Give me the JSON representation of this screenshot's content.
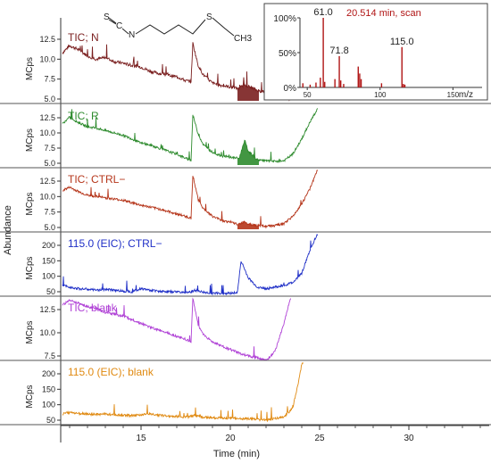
{
  "figure": {
    "y_axis_label": "Abundance",
    "x_axis_label": "Time (min)",
    "structure_labels": {
      "S": "S",
      "C": "C",
      "N": "N",
      "S2": "S",
      "CH3": "CH3"
    }
  },
  "chart_data": [
    {
      "type": "line",
      "title": "TIC; N",
      "color": "#7a1f1f",
      "ylabel": "MCps",
      "y_ticks": [
        "12.5",
        "10.0",
        "7.5",
        "5.0"
      ],
      "x_range": [
        10.5,
        34.5
      ],
      "peak_fill_window": [
        20.4,
        21.6
      ],
      "series": [
        {
          "x": [
            10.6,
            11,
            11.5,
            12,
            12.5,
            13,
            13.5,
            14,
            14.5,
            15,
            15.5,
            16,
            16.5,
            17,
            17.5,
            17.8,
            17.9,
            18.2,
            18.5,
            19,
            19.5,
            20,
            20.5,
            20.8,
            21,
            21.5,
            22,
            22.5,
            23,
            23.4
          ],
          "y": [
            10.8,
            11.7,
            11.2,
            10.4,
            10.0,
            10.2,
            9.7,
            9.5,
            9.2,
            9.0,
            8.5,
            8.2,
            8.0,
            7.8,
            7.3,
            7.2,
            12.0,
            9.2,
            8.0,
            7.0,
            6.7,
            6.5,
            6.3,
            6.9,
            6.6,
            6.1,
            5.8,
            5.5,
            5.2,
            5.0
          ]
        }
      ]
    },
    {
      "type": "line",
      "title": "TIC; R",
      "color": "#2e8b2e",
      "ylabel": "MCps",
      "y_ticks": [
        "12.5",
        "10.0",
        "7.5",
        "5.0"
      ],
      "x_range": [
        10.5,
        34.5
      ],
      "peak_fill_window": [
        20.4,
        21.6
      ],
      "series": [
        {
          "x": [
            10.6,
            11,
            11.5,
            12,
            12.5,
            13,
            13.5,
            14,
            14.5,
            15,
            15.5,
            16,
            16.5,
            17,
            17.5,
            17.8,
            17.9,
            18.2,
            18.5,
            19,
            19.5,
            20,
            20.5,
            20.8,
            21,
            21.5,
            22,
            22.5,
            23,
            23.5,
            24,
            24.5,
            24.9
          ],
          "y": [
            11.5,
            12.6,
            11.7,
            11.0,
            10.8,
            10.4,
            10.0,
            9.6,
            9.0,
            8.3,
            8.0,
            7.5,
            7.0,
            6.5,
            5.8,
            5.5,
            13.0,
            9.8,
            8.0,
            6.8,
            6.2,
            6.0,
            5.8,
            8.8,
            7.0,
            5.6,
            5.4,
            5.3,
            5.4,
            6.5,
            9.0,
            12.0,
            14.0
          ]
        }
      ]
    },
    {
      "type": "line",
      "title": "TIC; CTRL−",
      "color": "#b5351a",
      "ylabel": "MCps",
      "y_ticks": [
        "12.5",
        "10.0",
        "7.5",
        "5.0"
      ],
      "x_range": [
        10.5,
        34.5
      ],
      "peak_fill_window": [
        20.4,
        21.6
      ],
      "series": [
        {
          "x": [
            10.6,
            11,
            11.5,
            12,
            12.5,
            13,
            13.5,
            14,
            14.5,
            15,
            15.5,
            16,
            16.5,
            17,
            17.5,
            17.8,
            17.9,
            18.2,
            18.5,
            19,
            19.5,
            20,
            20.5,
            20.8,
            21,
            21.5,
            22,
            22.5,
            23,
            23.5,
            24,
            24.5,
            24.9
          ],
          "y": [
            11.0,
            11.5,
            10.8,
            10.2,
            10.0,
            9.8,
            9.6,
            9.4,
            9.0,
            8.6,
            8.3,
            8.0,
            7.6,
            7.2,
            6.8,
            6.5,
            13.5,
            9.5,
            8.0,
            6.8,
            6.2,
            5.8,
            5.5,
            6.0,
            5.6,
            5.3,
            5.2,
            5.3,
            5.6,
            6.8,
            8.8,
            11.5,
            14.5
          ]
        }
      ]
    },
    {
      "type": "line",
      "title": "115.0 (EIC); CTRL−",
      "color": "#1f2fc7",
      "ylabel": "MCps",
      "y_ticks": [
        "200",
        "150",
        "100",
        "50"
      ],
      "x_range": [
        10.5,
        34.5
      ],
      "series": [
        {
          "x": [
            10.6,
            11,
            11.5,
            12,
            12.5,
            13,
            13.5,
            14,
            14.5,
            15,
            15.5,
            16,
            16.5,
            17,
            17.5,
            17.8,
            18,
            18.5,
            19,
            19.5,
            20,
            20.4,
            20.6,
            21,
            21.5,
            22,
            22.5,
            23,
            23.5,
            24,
            24.5,
            24.9
          ],
          "y": [
            70,
            65,
            60,
            58,
            55,
            58,
            55,
            52,
            50,
            60,
            55,
            52,
            50,
            50,
            48,
            48,
            55,
            48,
            45,
            45,
            45,
            48,
            150,
            95,
            65,
            60,
            65,
            70,
            80,
            110,
            190,
            240
          ]
        }
      ]
    },
    {
      "type": "line",
      "title": "TIC; blank",
      "color": "#b042d6",
      "ylabel": "MCps",
      "y_ticks": [
        "12.5",
        "10.0",
        "7.5"
      ],
      "x_range": [
        10.5,
        34.5
      ],
      "series": [
        {
          "x": [
            10.6,
            11,
            11.5,
            12,
            12.5,
            13,
            13.5,
            14,
            14.5,
            15,
            15.5,
            16,
            16.5,
            17,
            17.5,
            17.8,
            17.9,
            18.2,
            18.5,
            19,
            19.5,
            20,
            20.5,
            21,
            21.5,
            22,
            22.5,
            23,
            23.4
          ],
          "y": [
            13.0,
            13.5,
            13.2,
            12.8,
            12.6,
            12.2,
            12.0,
            11.8,
            11.4,
            11.0,
            10.6,
            10.3,
            10.0,
            9.6,
            9.3,
            9.0,
            13.8,
            10.8,
            9.8,
            9.0,
            8.6,
            8.2,
            7.8,
            7.5,
            7.3,
            7.0,
            8.0,
            11.0,
            14.0
          ]
        }
      ]
    },
    {
      "type": "line",
      "title": "115.0 (EIC); blank",
      "color": "#e08a12",
      "ylabel": "MCps",
      "y_ticks": [
        "200",
        "150",
        "100",
        "50"
      ],
      "x_range": [
        10.5,
        34.5
      ],
      "series": [
        {
          "x": [
            10.6,
            11,
            11.5,
            12,
            12.5,
            13,
            13.5,
            14,
            14.5,
            15,
            15.5,
            16,
            16.5,
            17,
            17.5,
            17.8,
            18,
            18.5,
            19,
            19.5,
            20,
            20.5,
            21,
            21.5,
            22,
            22.5,
            23,
            23.5,
            23.8,
            24.1
          ],
          "y": [
            70,
            75,
            72,
            70,
            68,
            70,
            68,
            66,
            65,
            68,
            70,
            66,
            64,
            62,
            60,
            62,
            65,
            60,
            58,
            57,
            56,
            55,
            55,
            52,
            50,
            55,
            60,
            90,
            170,
            260
          ]
        }
      ]
    },
    {
      "type": "bar",
      "title": "20.514 min, scan",
      "color": "#b01414",
      "xlabel": "m/z",
      "x_ticks": [
        "50",
        "100",
        "150"
      ],
      "y_ticks": [
        "100%",
        "50%",
        "0%"
      ],
      "x_range": [
        45,
        170
      ],
      "y_range": [
        0,
        100
      ],
      "peak_labels": [
        "61.0",
        "71.8",
        "115.0"
      ],
      "bars": [
        {
          "mz": 47,
          "rel": 6
        },
        {
          "mz": 52,
          "rel": 4
        },
        {
          "mz": 56,
          "rel": 7
        },
        {
          "mz": 59,
          "rel": 14
        },
        {
          "mz": 61,
          "rel": 100
        },
        {
          "mz": 62,
          "rel": 8
        },
        {
          "mz": 69,
          "rel": 12
        },
        {
          "mz": 72,
          "rel": 45
        },
        {
          "mz": 73,
          "rel": 10
        },
        {
          "mz": 75,
          "rel": 5
        },
        {
          "mz": 85,
          "rel": 30
        },
        {
          "mz": 86,
          "rel": 20
        },
        {
          "mz": 87,
          "rel": 12
        },
        {
          "mz": 101,
          "rel": 6
        },
        {
          "mz": 115,
          "rel": 58
        },
        {
          "mz": 116,
          "rel": 5
        },
        {
          "mz": 117,
          "rel": 4
        }
      ]
    }
  ],
  "x_axis": {
    "ticks": [
      "15",
      "20",
      "25",
      "30"
    ],
    "tick_values": [
      15,
      20,
      25,
      30
    ]
  }
}
